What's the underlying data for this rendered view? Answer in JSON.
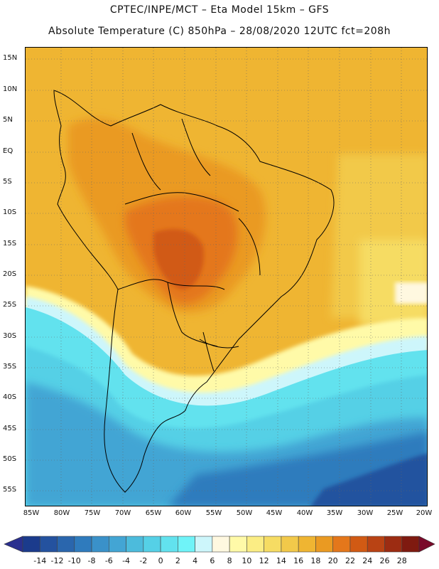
{
  "header": {
    "line1": "CPTEC/INPE/MCT –  Eta Model 15km – GFS",
    "line2": "Absolute Temperature (C) 850hPa – 28/08/2020 12UTC fct=208h"
  },
  "map": {
    "lat_labels": [
      "15N",
      "10N",
      "5N",
      "EQ",
      "5S",
      "10S",
      "15S",
      "20S",
      "25S",
      "30S",
      "35S",
      "40S",
      "45S",
      "50S",
      "55S"
    ],
    "lon_labels": [
      "85W",
      "80W",
      "75W",
      "70W",
      "65W",
      "60W",
      "55W",
      "50W",
      "45W",
      "40W",
      "35W",
      "30W",
      "25W",
      "20W"
    ],
    "extent": {
      "lon": [
        -85.5,
        -20.5
      ],
      "lat": [
        -57.5,
        16.5
      ]
    },
    "field_colors_note_free": true
  },
  "colorbar": {
    "labels": [
      "-14",
      "-12",
      "-10",
      "-8",
      "-6",
      "-4",
      "-2",
      "0",
      "2",
      "4",
      "6",
      "8",
      "10",
      "12",
      "14",
      "16",
      "18",
      "20",
      "22",
      "24",
      "26",
      "28"
    ],
    "colors": [
      "#1b3b8c",
      "#24529f",
      "#2a66ad",
      "#2f7bbd",
      "#3a91c9",
      "#43a5d4",
      "#4cbbdc",
      "#55d0e6",
      "#62e2ee",
      "#6ff3f8",
      "#cdf6fb",
      "#fff8e0",
      "#fffaa8",
      "#fbed84",
      "#f6dc63",
      "#f2c94a",
      "#efb532",
      "#ea9a22",
      "#e4771b",
      "#d15a14",
      "#b94314",
      "#9c2c12",
      "#7f1a10"
    ],
    "under_color": "#2a2f8f",
    "over_color": "#7a0a2a"
  }
}
